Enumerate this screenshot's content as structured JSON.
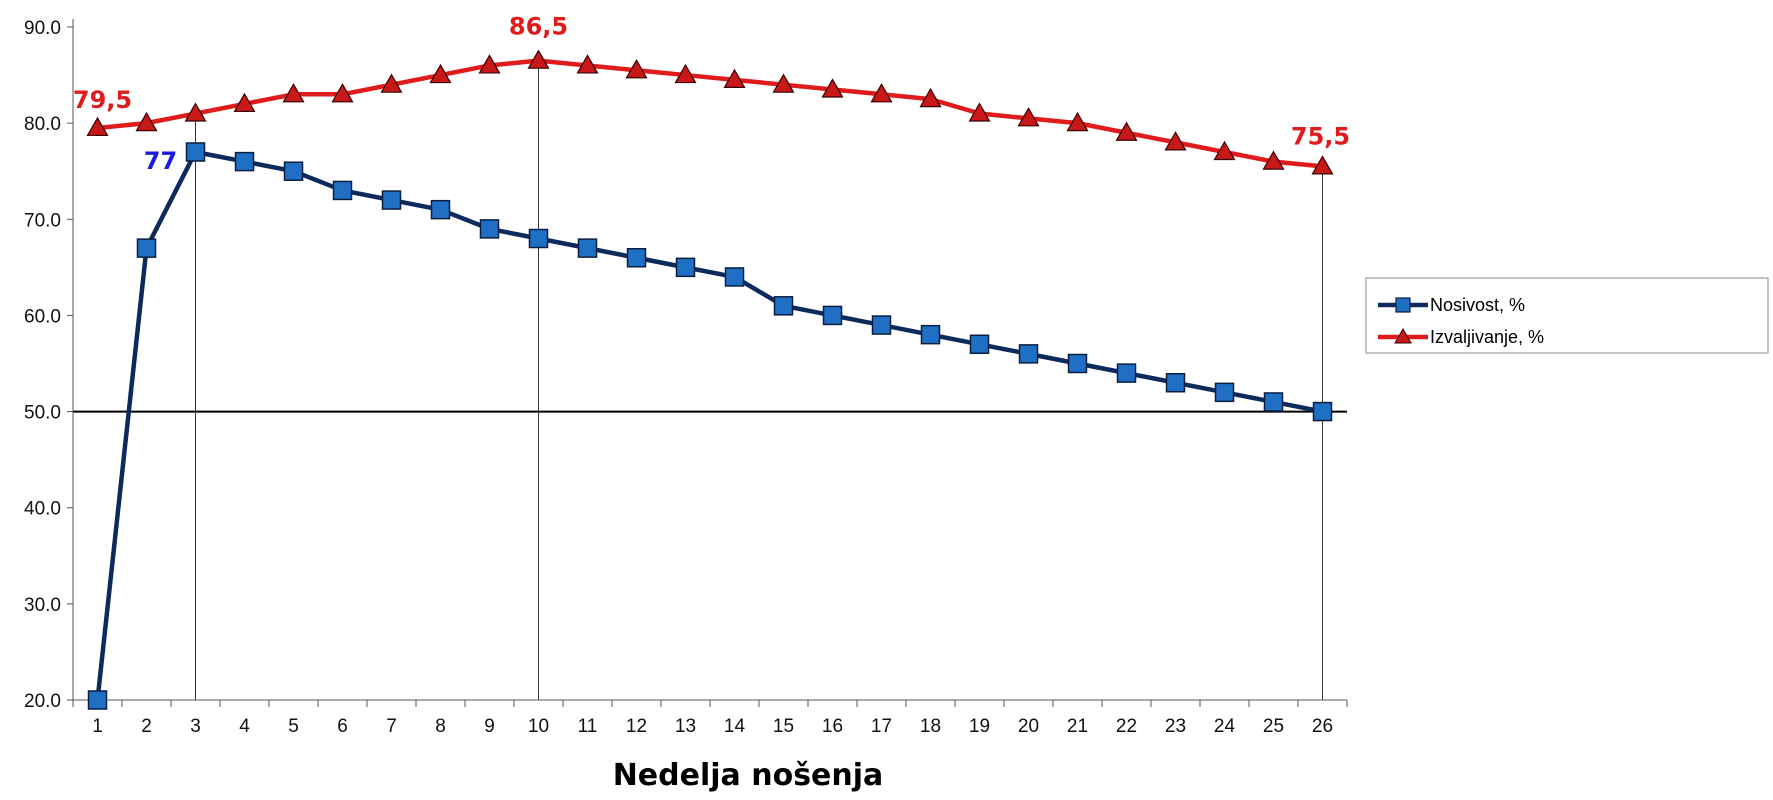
{
  "chart_data": {
    "type": "line",
    "title": "",
    "xlabel": "Nedelja nošenja",
    "ylabel": "",
    "x": [
      1,
      2,
      3,
      4,
      5,
      6,
      7,
      8,
      9,
      10,
      11,
      12,
      13,
      14,
      15,
      16,
      17,
      18,
      19,
      20,
      21,
      22,
      23,
      24,
      25,
      26
    ],
    "x_tick_labels": [
      "1",
      "2",
      "3",
      "4",
      "5",
      "6",
      "7",
      "8",
      "9",
      "10",
      "11",
      "12",
      "13",
      "14",
      "15",
      "16",
      "17",
      "18",
      "19",
      "20",
      "21",
      "22",
      "23",
      "24",
      "25",
      "26"
    ],
    "ylim": [
      20,
      90
    ],
    "y_ticks": [
      20,
      30,
      40,
      50,
      60,
      70,
      80,
      90
    ],
    "y_tick_labels": [
      "20.0",
      "30.0",
      "40.0",
      "50.0",
      "60.0",
      "70.0",
      "80.0",
      "90.0"
    ],
    "grid": false,
    "reference_lines": {
      "horizontal_y": 50,
      "vertical_x": [
        3,
        10,
        26
      ]
    },
    "legend_position": "right",
    "series": [
      {
        "name": "Nosivost, %",
        "marker": "square",
        "line_color": "#0d2a5c",
        "marker_color": "#1f6fc5",
        "values": [
          20,
          67,
          77,
          76,
          75,
          73,
          72,
          71,
          69,
          68,
          67,
          66,
          65,
          64,
          61,
          60,
          59,
          58,
          57,
          56,
          55,
          54,
          53,
          52,
          51,
          50
        ]
      },
      {
        "name": "Izvaljivanje, %",
        "marker": "triangle",
        "line_color": "#e01b1b",
        "marker_color": "#c81818",
        "values": [
          79.5,
          80,
          81,
          82,
          83,
          83,
          84,
          85,
          86,
          86.5,
          86,
          85.5,
          85,
          84.5,
          84,
          83.5,
          83,
          82.5,
          81,
          80.5,
          80,
          79,
          78,
          77,
          76,
          75.5
        ]
      }
    ],
    "annotations": [
      {
        "text": "79,5",
        "series": 1,
        "x": 1,
        "color": "#e01b1b"
      },
      {
        "text": "86,5",
        "series": 1,
        "x": 10,
        "color": "#e01b1b"
      },
      {
        "text": "75,5",
        "series": 1,
        "x": 26,
        "color": "#e01b1b"
      },
      {
        "text": "77",
        "series": 0,
        "x": 3,
        "color": "#1a1ae0"
      }
    ]
  }
}
